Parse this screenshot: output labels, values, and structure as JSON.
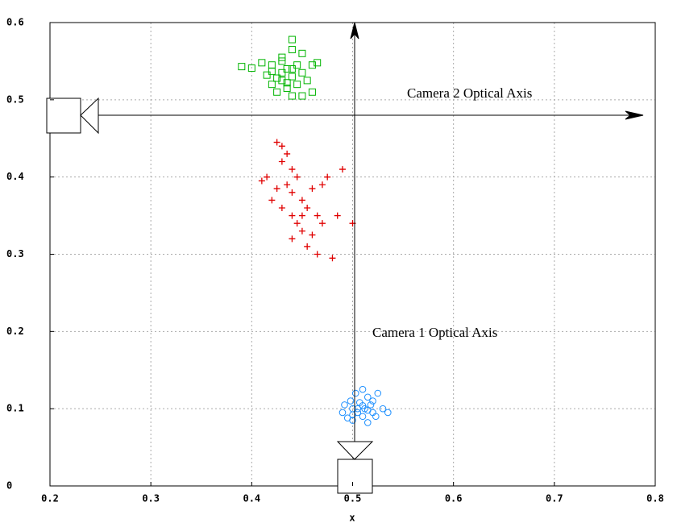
{
  "chart_data": {
    "type": "scatter",
    "annotations": [
      "Camera 2 Optical Axis",
      "Camera 1 Optical Axis"
    ],
    "xlabel": "x",
    "xlim": [
      0.2,
      0.8
    ],
    "ylim": [
      0,
      0.6
    ],
    "xticks": [
      0.2,
      0.3,
      0.4,
      0.5,
      0.6,
      0.7,
      0.8
    ],
    "yticks": [
      0,
      0.1,
      0.2,
      0.3,
      0.4,
      0.5,
      0.6
    ],
    "grid": true,
    "series": [
      {
        "color": "#00b400",
        "marker": "square",
        "x": [
          0.39,
          0.4,
          0.41,
          0.415,
          0.42,
          0.42,
          0.425,
          0.43,
          0.43,
          0.43,
          0.435,
          0.435,
          0.44,
          0.44,
          0.44,
          0.445,
          0.445,
          0.45,
          0.45,
          0.455,
          0.46,
          0.46,
          0.465,
          0.44,
          0.425,
          0.435,
          0.43,
          0.45,
          0.42,
          0.44
        ],
        "y": [
          0.543,
          0.541,
          0.548,
          0.532,
          0.52,
          0.545,
          0.51,
          0.535,
          0.525,
          0.555,
          0.54,
          0.515,
          0.578,
          0.53,
          0.505,
          0.545,
          0.52,
          0.535,
          0.56,
          0.525,
          0.545,
          0.51,
          0.548,
          0.54,
          0.528,
          0.522,
          0.55,
          0.505,
          0.537,
          0.565
        ]
      },
      {
        "color": "#e00000",
        "marker": "plus",
        "x": [
          0.41,
          0.415,
          0.42,
          0.425,
          0.425,
          0.43,
          0.43,
          0.435,
          0.435,
          0.44,
          0.44,
          0.44,
          0.445,
          0.445,
          0.45,
          0.45,
          0.455,
          0.455,
          0.46,
          0.46,
          0.465,
          0.465,
          0.47,
          0.47,
          0.475,
          0.48,
          0.485,
          0.49,
          0.5,
          0.43,
          0.45,
          0.44
        ],
        "y": [
          0.395,
          0.4,
          0.37,
          0.445,
          0.385,
          0.42,
          0.36,
          0.43,
          0.39,
          0.38,
          0.35,
          0.41,
          0.34,
          0.4,
          0.37,
          0.33,
          0.36,
          0.31,
          0.385,
          0.325,
          0.35,
          0.3,
          0.39,
          0.34,
          0.4,
          0.295,
          0.35,
          0.41,
          0.34,
          0.44,
          0.35,
          0.32
        ]
      },
      {
        "color": "#1e90ff",
        "marker": "circle",
        "x": [
          0.49,
          0.492,
          0.495,
          0.498,
          0.5,
          0.5,
          0.503,
          0.505,
          0.507,
          0.51,
          0.51,
          0.512,
          0.515,
          0.515,
          0.518,
          0.52,
          0.52,
          0.523,
          0.525,
          0.53,
          0.535,
          0.505,
          0.51,
          0.5,
          0.515
        ],
        "y": [
          0.095,
          0.105,
          0.088,
          0.11,
          0.1,
          0.085,
          0.12,
          0.095,
          0.108,
          0.125,
          0.09,
          0.1,
          0.115,
          0.082,
          0.105,
          0.095,
          0.11,
          0.09,
          0.12,
          0.1,
          0.095,
          0.1,
          0.104,
          0.092,
          0.098
        ]
      }
    ]
  }
}
